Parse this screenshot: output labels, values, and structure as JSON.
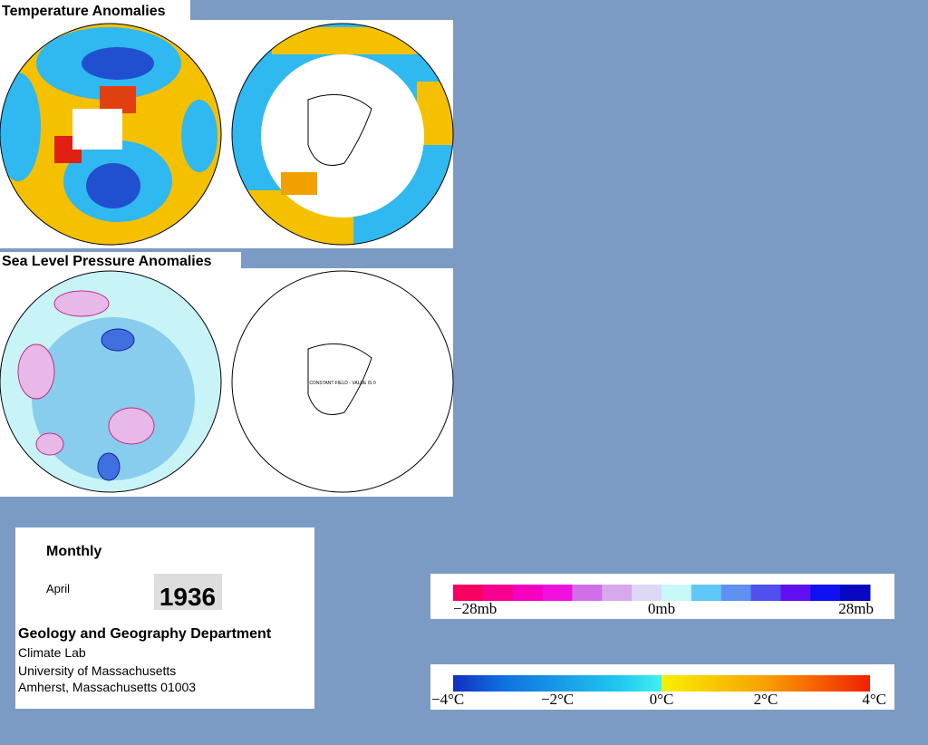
{
  "temperature_panel": {
    "title": "Temperature Anomalies"
  },
  "pressure_panel": {
    "title": "Sea Level Pressure Anomalies",
    "note": "CONSTANT FIELD - VALUE IS 0"
  },
  "info": {
    "period": "Monthly",
    "month": "April",
    "year": "1936",
    "department": "Geology and Geography Department",
    "address": [
      "Climate Lab",
      "University of Massachusetts",
      "Amherst, Massachusetts 01003"
    ]
  },
  "pressure_scale": {
    "labels": [
      "−28mb",
      "0mb",
      "28mb"
    ]
  },
  "temperature_scale": {
    "labels": [
      "−4°C",
      "−2°C",
      "0°C",
      "2°C",
      "4°C"
    ]
  }
}
